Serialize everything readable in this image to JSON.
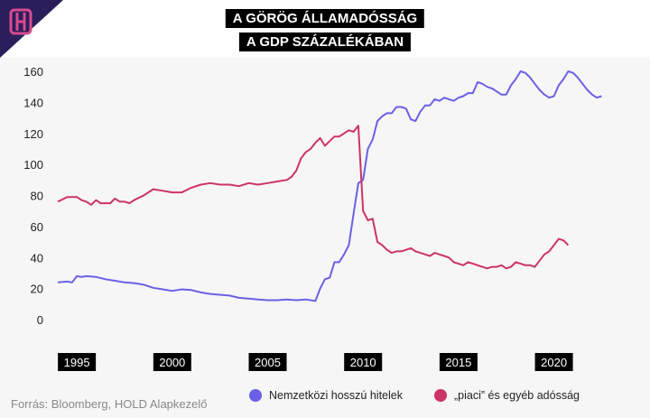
{
  "header": {
    "title": "A GÖRÖG ÁLLAMADÓSSÁG",
    "subtitle": "A GDP SZÁZALÉKÁBAN"
  },
  "source": "Forrás: Bloomberg, HOLD Alapkezelő",
  "colors": {
    "series1": "#6b5fe6",
    "series2": "#cc3366",
    "logo_bg": "#2a1f5a",
    "logo_mark": "#d84a8f"
  },
  "chart_data": {
    "type": "line",
    "ylim": [
      0,
      160
    ],
    "yticks": [
      0,
      20,
      40,
      60,
      80,
      100,
      120,
      140,
      160
    ],
    "xlim": [
      1994.0,
      2023.0
    ],
    "xticks": [
      1995,
      2000,
      2005,
      2010,
      2015,
      2020
    ],
    "xtick_labels": [
      "1995",
      "2000",
      "2005",
      "2010",
      "2015",
      "2020"
    ],
    "grid": false,
    "legend_placement": "bottom",
    "series": [
      {
        "name": "Nemzetközi hosszú hitelek",
        "x": [
          1994.0,
          1994.5,
          1994.75,
          1995.0,
          1995.25,
          1995.5,
          1996.0,
          1996.5,
          1997.0,
          1997.5,
          1998.0,
          1998.5,
          1999.0,
          1999.5,
          2000.0,
          2000.5,
          2001.0,
          2001.5,
          2002.0,
          2002.5,
          2003.0,
          2003.5,
          2004.0,
          2004.5,
          2005.0,
          2005.5,
          2006.0,
          2006.5,
          2007.0,
          2007.5,
          2007.75,
          2008.0,
          2008.25,
          2008.5,
          2008.75,
          2009.0,
          2009.25,
          2009.5,
          2009.75,
          2010.0,
          2010.25,
          2010.5,
          2010.75,
          2011.0,
          2011.25,
          2011.5,
          2011.75,
          2012.0,
          2012.25,
          2012.5,
          2012.75,
          2013.0,
          2013.25,
          2013.5,
          2013.75,
          2014.0,
          2014.25,
          2014.5,
          2014.75,
          2015.0,
          2015.25,
          2015.5,
          2015.75,
          2016.0,
          2016.25,
          2016.5,
          2016.75,
          2017.0,
          2017.25,
          2017.5,
          2017.75,
          2018.0,
          2018.25,
          2018.5,
          2018.75,
          2019.0,
          2019.25,
          2019.5,
          2019.75,
          2020.0,
          2020.25,
          2020.5,
          2020.75,
          2021.0,
          2021.25,
          2021.5,
          2021.75,
          2022.0,
          2022.25,
          2022.5
        ],
        "values": [
          24,
          24.5,
          24,
          28,
          27.5,
          28,
          27.5,
          26,
          25,
          24,
          23.5,
          22.5,
          20.5,
          19.5,
          18.5,
          19.5,
          19,
          17.5,
          16.5,
          16,
          15.5,
          14,
          13.5,
          13,
          12.5,
          12.5,
          13,
          12.5,
          13,
          12,
          20,
          26,
          27,
          37,
          37,
          42,
          48,
          68,
          88,
          90,
          110,
          116,
          128,
          131,
          133,
          133,
          137,
          137,
          136,
          129,
          128,
          134,
          138,
          138,
          142,
          141,
          143,
          142,
          141,
          143,
          144,
          146,
          146,
          153,
          152,
          150,
          149,
          147,
          145,
          145,
          151,
          155,
          160,
          159,
          156,
          152,
          148,
          145,
          143,
          144,
          151,
          155,
          160,
          159,
          156,
          152,
          148,
          145,
          143,
          144
        ]
      },
      {
        "name": "„piaci” és egyéb adósság",
        "x": [
          1994.0,
          1994.5,
          1995.0,
          1995.25,
          1995.5,
          1995.75,
          1996.0,
          1996.25,
          1996.5,
          1996.75,
          1997.0,
          1997.25,
          1997.5,
          1997.75,
          1998.0,
          1998.5,
          1999.0,
          1999.5,
          2000.0,
          2000.5,
          2001.0,
          2001.5,
          2002.0,
          2002.5,
          2003.0,
          2003.5,
          2004.0,
          2004.5,
          2005.0,
          2005.5,
          2006.0,
          2006.25,
          2006.5,
          2006.75,
          2007.0,
          2007.25,
          2007.5,
          2007.75,
          2008.0,
          2008.25,
          2008.5,
          2008.75,
          2009.0,
          2009.25,
          2009.5,
          2009.75,
          2010.0,
          2010.25,
          2010.5,
          2010.75,
          2011.0,
          2011.25,
          2011.5,
          2011.75,
          2012.0,
          2012.25,
          2012.5,
          2012.75,
          2013.0,
          2013.25,
          2013.5,
          2013.75,
          2014.0,
          2014.25,
          2014.5,
          2014.75,
          2015.0,
          2015.25,
          2015.5,
          2015.75,
          2016.0,
          2016.25,
          2016.5,
          2016.75,
          2017.0,
          2017.25,
          2017.5,
          2017.75,
          2018.0,
          2018.25,
          2018.5,
          2018.75,
          2019.0,
          2019.25,
          2019.5,
          2019.75,
          2020.0,
          2020.25,
          2020.5,
          2020.75
        ],
        "values": [
          76,
          79,
          79,
          77,
          76,
          74,
          77,
          75,
          75,
          75,
          78,
          76,
          76,
          75,
          77,
          80,
          84,
          83,
          82,
          82,
          85,
          87,
          88,
          87,
          87,
          86,
          88,
          87,
          88,
          89,
          90,
          92,
          96,
          104,
          108,
          110,
          114,
          117,
          112,
          115,
          118,
          118,
          120,
          122,
          121,
          125,
          70,
          64,
          65,
          50,
          48,
          45,
          43,
          44,
          44,
          45,
          46,
          44,
          43,
          42,
          41,
          43,
          42,
          41,
          40,
          37,
          36,
          35,
          37,
          36,
          35,
          34,
          33,
          34,
          34,
          35,
          33,
          34,
          37,
          36,
          35,
          35,
          34,
          38,
          42,
          44,
          48,
          52,
          51,
          48
        ]
      }
    ]
  }
}
